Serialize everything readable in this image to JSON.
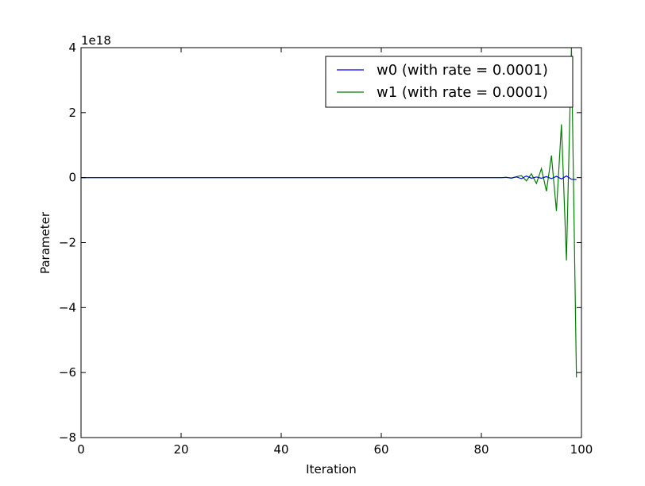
{
  "chart_data": {
    "type": "line",
    "title": "",
    "xlabel": "Iteration",
    "ylabel": "Parameter",
    "offset_label": "1e18",
    "xlim": [
      0,
      100
    ],
    "ylim": [
      -8,
      4
    ],
    "x_ticks": [
      0,
      20,
      40,
      60,
      80,
      100
    ],
    "y_ticks": [
      -8,
      -6,
      -4,
      -2,
      0,
      2,
      4
    ],
    "x_tick_labels": [
      "0",
      "20",
      "40",
      "60",
      "80",
      "100"
    ],
    "y_tick_labels": [
      "−8",
      "−6",
      "−4",
      "−2",
      "0",
      "2",
      "4"
    ],
    "grid": false,
    "legend_position": "top-right",
    "series": [
      {
        "name": "w0 (with rate = 0.0001)",
        "color": "#0000ff",
        "x": [
          0,
          84,
          85,
          86,
          87,
          88,
          89,
          90,
          91,
          92,
          93,
          94,
          95,
          96,
          97,
          98,
          99
        ],
        "y": [
          0,
          0,
          0.005,
          -0.01,
          0.02,
          -0.03,
          0.05,
          -0.02,
          0.02,
          -0.02,
          0.03,
          -0.03,
          0.04,
          -0.04,
          0.05,
          -0.05,
          -0.06
        ]
      },
      {
        "name": "w1 (with rate = 0.0001)",
        "color": "#008000",
        "x": [
          0,
          84,
          85,
          86,
          87,
          88,
          89,
          90,
          91,
          92,
          93,
          94,
          95,
          96,
          97,
          98,
          99
        ],
        "y": [
          0,
          0,
          0.01,
          -0.02,
          0.03,
          0.06,
          -0.1,
          0.12,
          -0.18,
          0.28,
          -0.42,
          0.68,
          -1.03,
          1.64,
          -2.55,
          4.0,
          -6.15
        ]
      }
    ]
  }
}
